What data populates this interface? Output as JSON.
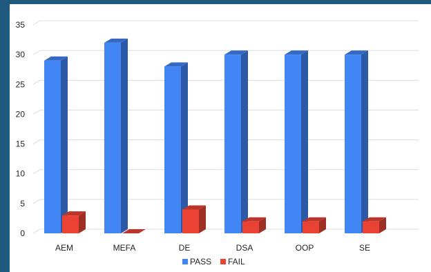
{
  "chart_data": {
    "type": "bar",
    "categories": [
      "AEM",
      "MEFA",
      "DE",
      "DSA",
      "OOP",
      "SE"
    ],
    "series": [
      {
        "name": "PASS",
        "values": [
          29,
          32,
          28,
          30,
          30,
          30
        ],
        "color": "#4285f4"
      },
      {
        "name": "FAIL",
        "values": [
          3,
          0,
          4,
          2,
          2,
          2
        ],
        "color": "#ea4335"
      }
    ],
    "yticks": [
      0,
      5,
      10,
      15,
      20,
      25,
      30,
      35
    ],
    "ylim": [
      0,
      35
    ],
    "grid": true,
    "legend": "bottom",
    "style": "3d"
  }
}
